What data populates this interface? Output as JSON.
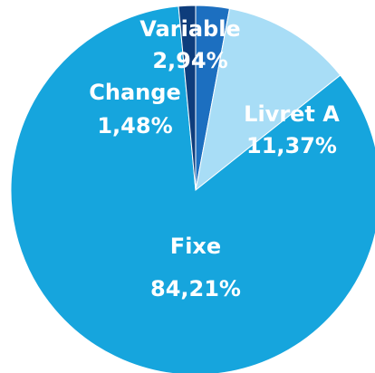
{
  "chart_data": {
    "type": "pie",
    "categories": [
      "Variable",
      "Livret A",
      "Fixe",
      "Change"
    ],
    "values": [
      2.94,
      11.37,
      84.21,
      1.48
    ],
    "value_labels": [
      "2,94%",
      "11,37%",
      "84,21%",
      "1,48%"
    ],
    "colors": [
      "#1c6fc0",
      "#a8ddf6",
      "#16a5dd",
      "#0e3d7c"
    ]
  }
}
